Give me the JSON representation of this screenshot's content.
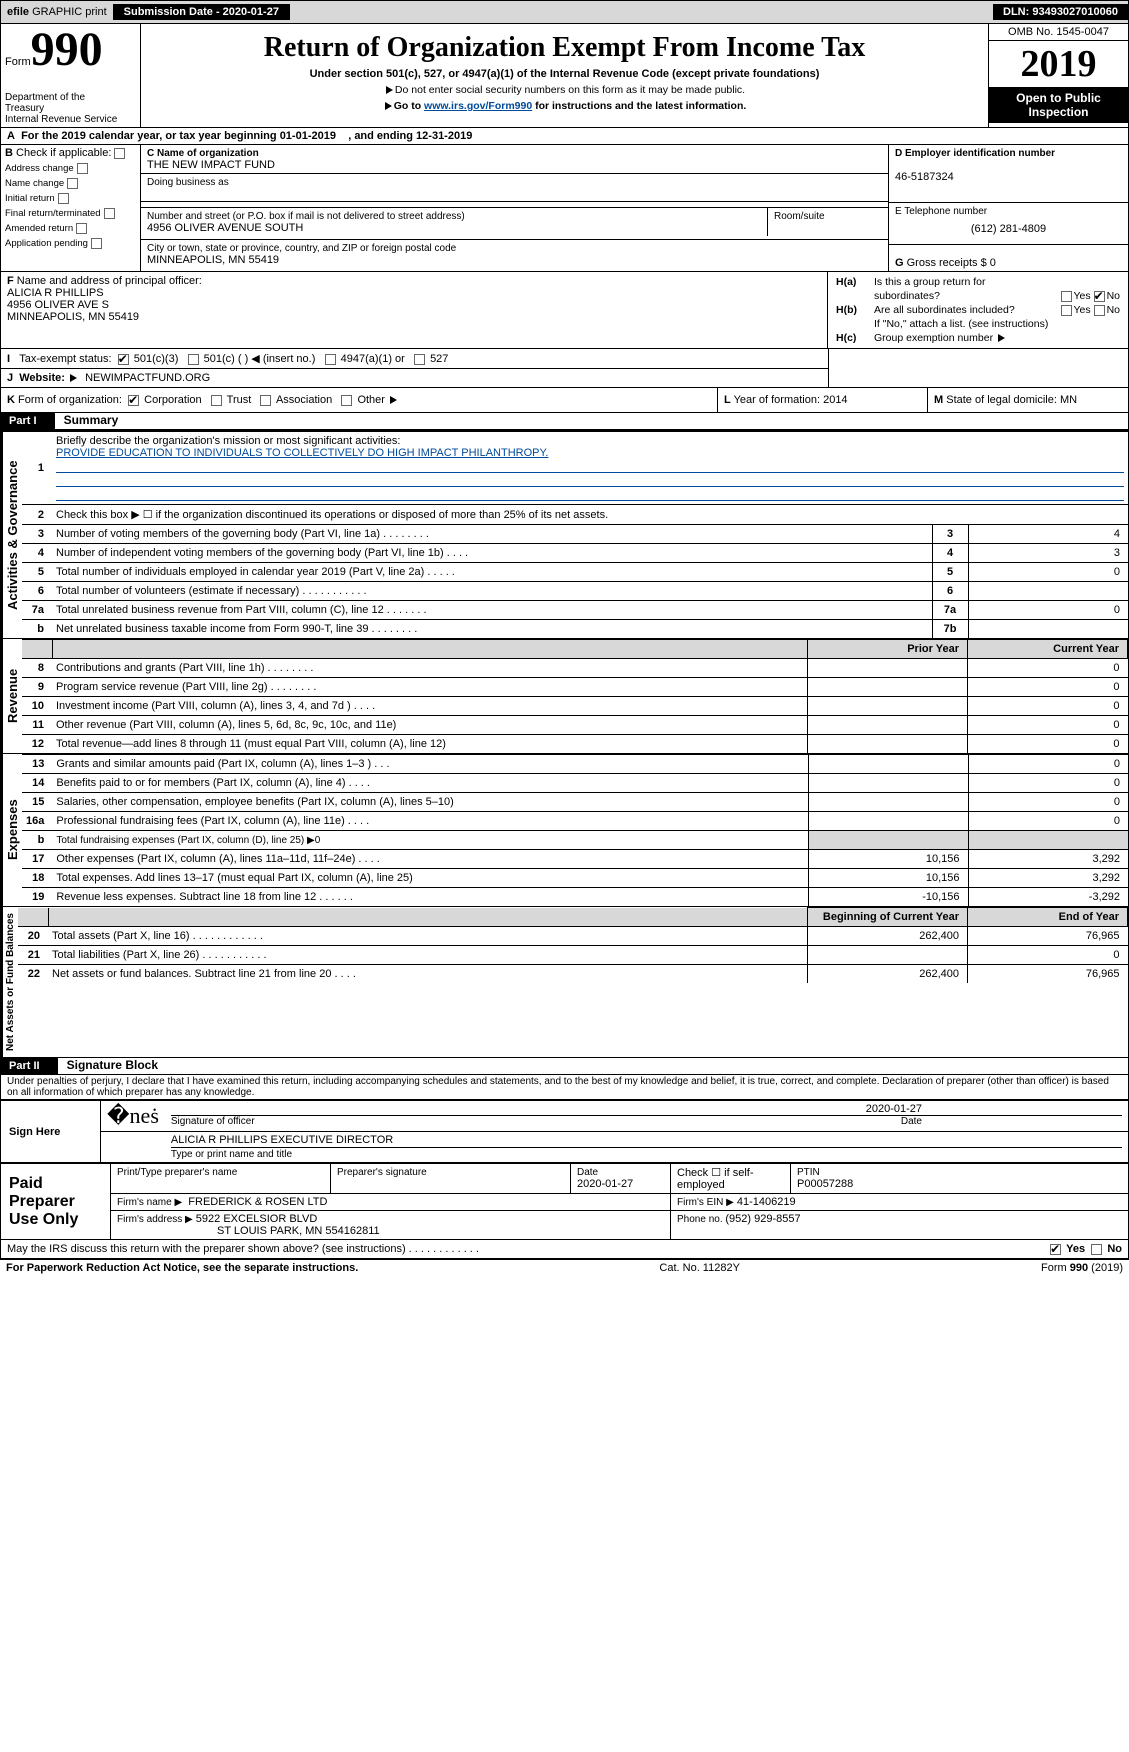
{
  "top": {
    "efile_prefix": "efile",
    "efile_rest": " GRAPHIC print",
    "submission_label": "Submission Date - 2020-01-27",
    "dln": "DLN: 93493027010060"
  },
  "header": {
    "form_prefix": "Form",
    "form_number": "990",
    "dept1": "Department of the",
    "dept2": "Treasury",
    "dept3": "Internal Revenue Service",
    "title": "Return of Organization Exempt From Income Tax",
    "subtitle": "Under section 501(c), 527, or 4947(a)(1) of the Internal Revenue Code (except private foundations)",
    "note1": "Do not enter social security numbers on this form as it may be made public.",
    "note2a": "Go to ",
    "note2_link": "www.irs.gov/Form990",
    "note2b": " for instructions and the latest information.",
    "omb": "OMB No. 1545-0047",
    "year": "2019",
    "open_public1": "Open to Public",
    "open_public2": "Inspection"
  },
  "row_a": {
    "a": "A",
    "text1": "For the 2019 calendar year, or tax year beginning ",
    "begin": "01-01-2019",
    "text2": ", and ending ",
    "end": "12-31-2019"
  },
  "box_b": {
    "b": "B",
    "label": " Check if applicable:",
    "items": [
      "Address change",
      "Name change",
      "Initial return",
      "Final return/terminated",
      "Amended return",
      "Application pending"
    ]
  },
  "box_c": {
    "label": "C Name of organization",
    "name": "THE NEW IMPACT FUND",
    "dba_label": "Doing business as",
    "street_label": "Number and street (or P.O. box if mail is not delivered to street address)",
    "street": "4956 OLIVER AVENUE SOUTH",
    "room_label": "Room/suite",
    "city_label": "City or town, state or province, country, and ZIP or foreign postal code",
    "city": "MINNEAPOLIS, MN  55419"
  },
  "box_d": {
    "label": "D Employer identification number",
    "val": "46-5187324"
  },
  "box_e": {
    "label": "E Telephone number",
    "val": "(612) 281-4809"
  },
  "box_g": {
    "label": "G",
    "text": " Gross receipts $ 0"
  },
  "box_f": {
    "label": "F",
    "text": " Name and address of principal officer:",
    "name": "ALICIA R PHILLIPS",
    "addr1": "4956 OLIVER AVE S",
    "addr2": "MINNEAPOLIS, MN  55419"
  },
  "box_h": {
    "ha": "H(a)",
    "ha_text": "Is this a group return for",
    "ha_text2": "subordinates?",
    "hb": "H(b)",
    "hb_text": "Are all subordinates included?",
    "hb_note": "If \"No,\" attach a list. (see instructions)",
    "hc": "H(c)",
    "hc_text": "Group exemption number",
    "yes": "Yes",
    "no": "No"
  },
  "sec_i": {
    "i": "I",
    "label": "Tax-exempt status:",
    "opts": [
      "501(c)(3)",
      "501(c) (  )",
      "(insert no.)",
      "4947(a)(1) or",
      "527"
    ]
  },
  "sec_j": {
    "j": "J",
    "label": "Website:",
    "val": "NEWIMPACTFUND.ORG"
  },
  "sec_k": {
    "k": "K",
    "label": " Form of organization:",
    "opts": [
      "Corporation",
      "Trust",
      "Association",
      "Other"
    ]
  },
  "sec_lm": {
    "l_label": "L",
    "l_text": " Year of formation: ",
    "l_val": "2014",
    "m_label": "M",
    "m_text": " State of legal domicile: ",
    "m_val": "MN"
  },
  "part1": {
    "part": "Part I",
    "title": "Summary",
    "vlabel_ag": "Activities & Governance",
    "vlabel_rev": "Revenue",
    "vlabel_exp": "Expenses",
    "vlabel_na": "Net Assets or Fund Balances",
    "l1_label": "Briefly describe the organization's mission or most significant activities:",
    "l1_val": "PROVIDE EDUCATION TO INDIVIDUALS TO COLLECTIVELY DO HIGH IMPACT PHILANTHROPY.",
    "l2": "Check this box ▶ ☐  if the organization discontinued its operations or disposed of more than 25% of its net assets.",
    "rows_ag": [
      {
        "n": "3",
        "t": "Number of voting members of the governing body (Part VI, line 1a)  .   .   .   .   .   .   .   .",
        "b": "3",
        "v": "4"
      },
      {
        "n": "4",
        "t": "Number of independent voting members of the governing body (Part VI, line 1b)   .   .   .   .",
        "b": "4",
        "v": "3"
      },
      {
        "n": "5",
        "t": "Total number of individuals employed in calendar year 2019 (Part V, line 2a)   .   .   .   .   .",
        "b": "5",
        "v": "0"
      },
      {
        "n": "6",
        "t": "Total number of volunteers (estimate if necessary)   .   .   .   .   .   .   .   .   .   .   .",
        "b": "6",
        "v": ""
      },
      {
        "n": "7a",
        "t": "Total unrelated business revenue from Part VIII, column (C), line 12   .   .   .   .   .   .   .",
        "b": "7a",
        "v": "0"
      },
      {
        "n": "b",
        "t": "Net unrelated business taxable income from Form 990-T, line 39   .   .   .   .   .   .   .   .",
        "b": "7b",
        "v": ""
      }
    ],
    "hdr_py": "Prior Year",
    "hdr_cy": "Current Year",
    "rows_rev": [
      {
        "n": "8",
        "t": "Contributions and grants (Part VIII, line 1h)   .   .   .   .   .   .   .   .",
        "py": "",
        "cy": "0"
      },
      {
        "n": "9",
        "t": "Program service revenue (Part VIII, line 2g)   .   .   .   .   .   .   .   .",
        "py": "",
        "cy": "0"
      },
      {
        "n": "10",
        "t": "Investment income (Part VIII, column (A), lines 3, 4, and 7d )   .   .   .   .",
        "py": "",
        "cy": "0"
      },
      {
        "n": "11",
        "t": "Other revenue (Part VIII, column (A), lines 5, 6d, 8c, 9c, 10c, and 11e)",
        "py": "",
        "cy": "0"
      },
      {
        "n": "12",
        "t": "Total revenue—add lines 8 through 11 (must equal Part VIII, column (A), line 12)",
        "py": "",
        "cy": "0"
      }
    ],
    "rows_exp": [
      {
        "n": "13",
        "t": "Grants and similar amounts paid (Part IX, column (A), lines 1–3 )   .   .   .",
        "py": "",
        "cy": "0"
      },
      {
        "n": "14",
        "t": "Benefits paid to or for members (Part IX, column (A), line 4)   .   .   .   .",
        "py": "",
        "cy": "0"
      },
      {
        "n": "15",
        "t": "Salaries, other compensation, employee benefits (Part IX, column (A), lines 5–10)",
        "py": "",
        "cy": "0"
      },
      {
        "n": "16a",
        "t": "Professional fundraising fees (Part IX, column (A), line 11e)   .   .   .   .",
        "py": "",
        "cy": "0"
      },
      {
        "n": "b",
        "t": "Total fundraising expenses (Part IX, column (D), line 25) ▶0",
        "py": null,
        "cy": null
      },
      {
        "n": "17",
        "t": "Other expenses (Part IX, column (A), lines 11a–11d, 11f–24e)   .   .   .   .",
        "py": "10,156",
        "cy": "3,292"
      },
      {
        "n": "18",
        "t": "Total expenses. Add lines 13–17 (must equal Part IX, column (A), line 25)",
        "py": "10,156",
        "cy": "3,292"
      },
      {
        "n": "19",
        "t": "Revenue less expenses. Subtract line 18 from line 12   .   .   .   .   .   .",
        "py": "-10,156",
        "cy": "-3,292"
      }
    ],
    "hdr_bcy": "Beginning of Current Year",
    "hdr_eoy": "End of Year",
    "rows_na": [
      {
        "n": "20",
        "t": "Total assets (Part X, line 16)   .   .   .   .   .   .   .   .   .   .   .   .",
        "py": "262,400",
        "cy": "76,965"
      },
      {
        "n": "21",
        "t": "Total liabilities (Part X, line 26)   .   .   .   .   .   .   .   .   .   .   .",
        "py": "",
        "cy": "0"
      },
      {
        "n": "22",
        "t": "Net assets or fund balances. Subtract line 21 from line 20   .   .   .   .",
        "py": "262,400",
        "cy": "76,965"
      }
    ]
  },
  "part2": {
    "part": "Part II",
    "title": "Signature Block",
    "penalty": "Under penalties of perjury, I declare that I have examined this return, including accompanying schedules and statements, and to the best of my knowledge and belief, it is true, correct, and complete. Declaration of preparer (other than officer) is based on all information of which preparer has any knowledge.",
    "sign_here": "Sign Here",
    "sig_date": "2020-01-27",
    "sig_of_officer": "Signature of officer",
    "date_lbl": "Date",
    "officer_name": "ALICIA R PHILLIPS  EXECUTIVE DIRECTOR",
    "type_name": "Type or print name and title",
    "paid": "Paid Preparer Use Only",
    "pt_name_lbl": "Print/Type preparer's name",
    "pt_sig_lbl": "Preparer's signature",
    "pt_date_lbl": "Date",
    "pt_date": "2020-01-27",
    "pt_check": "Check ☐ if self-employed",
    "ptin_lbl": "PTIN",
    "ptin": "P00057288",
    "firm_name_lbl": "Firm's name   ▶",
    "firm_name": "FREDERICK & ROSEN LTD",
    "firm_ein_lbl": "Firm's EIN ▶",
    "firm_ein": "41-1406219",
    "firm_addr_lbl": "Firm's address ▶",
    "firm_addr1": "5922 EXCELSIOR BLVD",
    "firm_addr2": "ST LOUIS PARK, MN  554162811",
    "phone_lbl": "Phone no. ",
    "phone": "(952) 929-8557",
    "discuss": "May the IRS discuss this return with the preparer shown above? (see instructions)   .   .   .   .   .   .   .   .   .   .   .   .",
    "yes": "Yes",
    "no": "No"
  },
  "footer": {
    "left": "For Paperwork Reduction Act Notice, see the separate instructions.",
    "mid": "Cat. No. 11282Y",
    "right_a": "Form ",
    "right_b": "990",
    "right_c": " (2019)"
  }
}
